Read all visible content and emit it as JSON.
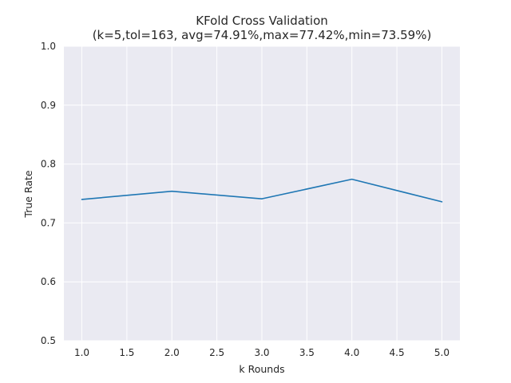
{
  "chart_data": {
    "type": "line",
    "title": "KFold Cross Validation",
    "subtitle": "(k=5,tol=163, avg=74.91%,max=77.42%,min=73.59%)",
    "xlabel": "k Rounds",
    "ylabel": "True Rate",
    "xlim": [
      0.8,
      5.2
    ],
    "ylim": [
      0.5,
      1.0
    ],
    "xticks": [
      "1.0",
      "1.5",
      "2.0",
      "2.5",
      "3.0",
      "3.5",
      "4.0",
      "4.5",
      "5.0"
    ],
    "yticks": [
      "0.5",
      "0.6",
      "0.7",
      "0.8",
      "0.9",
      "1.0"
    ],
    "grid": true,
    "colors": {
      "background": "#eaeaf2",
      "grid": "#ffffff",
      "line": "#1f77b4"
    },
    "series": [
      {
        "x": [
          1.0,
          2.0,
          3.0,
          4.0,
          5.0
        ],
        "values": [
          0.7399,
          0.7538,
          0.741,
          0.7742,
          0.7359
        ]
      }
    ]
  }
}
